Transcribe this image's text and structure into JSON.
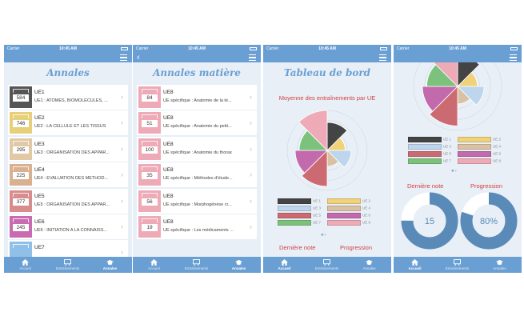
{
  "status": {
    "carrier": "Carrier",
    "time": "10:45 AM"
  },
  "tabbar": [
    {
      "label": "Accueil"
    },
    {
      "label": "Entraînements"
    },
    {
      "label": "Annales"
    }
  ],
  "screen1": {
    "title": "Annales",
    "rows": [
      {
        "code": "UE1",
        "desc": "UE1 : ATOMES, BIOMOLECULES, ...",
        "count": "584",
        "color": "#555555"
      },
      {
        "code": "UE2",
        "desc": "UE2 : LA CELLULE ET LES TISSUS",
        "count": "746",
        "color": "#e8cf7a"
      },
      {
        "code": "UE3",
        "desc": "UE3 : ORGANISATION DES APPAR...",
        "count": "295",
        "color": "#e0c9a4"
      },
      {
        "code": "UE4",
        "desc": "UE4 : EVALUATION DES METHOD...",
        "count": "225",
        "color": "#d9b090"
      },
      {
        "code": "UE5",
        "desc": "UE5 : ORGANISATION DES APPAR...",
        "count": "377",
        "color": "#d98c8c"
      },
      {
        "code": "UE6",
        "desc": "UE6 : INITIATION A LA CONNAISS...",
        "count": "245",
        "color": "#c96bb0"
      },
      {
        "code": "UE7",
        "desc": "",
        "count": "",
        "color": "#90c0e8"
      }
    ]
  },
  "screen2": {
    "title": "Annales matière",
    "rows": [
      {
        "code": "UE8",
        "desc": "UE spécifique : Anatomie de la té...",
        "count": "84"
      },
      {
        "code": "UE8",
        "desc": "UE spécifique : Anatomie du petit...",
        "count": "51"
      },
      {
        "code": "UE8",
        "desc": "UE spécifique : Anatomie du thorax",
        "count": "100"
      },
      {
        "code": "UE8",
        "desc": "UE spécifique : Méthodes d'étude...",
        "count": "35"
      },
      {
        "code": "UE8",
        "desc": "UE spécifique : Morphogénèse cr...",
        "count": "56"
      },
      {
        "code": "UE8",
        "desc": "UE spécifique : Les médicaments ...",
        "count": "19"
      }
    ]
  },
  "screen3": {
    "title": "Tableau de bord",
    "chart_title": "Moyenne des entraînements par UE",
    "last_score_label": "Dernière note",
    "progress_label": "Progression"
  },
  "screen4": {
    "last_score_label": "Dernière note",
    "progress_label": "Progression",
    "last_score_value": "15",
    "progress_value": "80%"
  },
  "chart_data": {
    "type": "polar-area",
    "title": "Moyenne des entraînements par UE",
    "series": [
      {
        "name": "UE 1",
        "value": 14,
        "color": "#444444"
      },
      {
        "name": "UE 2",
        "value": 9,
        "color": "#f0d27a"
      },
      {
        "name": "UE 3",
        "value": 12,
        "color": "#bed5ee"
      },
      {
        "name": "UE 4",
        "value": 8,
        "color": "#d9c2a4"
      },
      {
        "name": "UE 5",
        "value": 18,
        "color": "#cc6a72"
      },
      {
        "name": "UE 6",
        "value": 16,
        "color": "#c36aac"
      },
      {
        "name": "UE 7",
        "value": 14,
        "color": "#7cc27c"
      },
      {
        "name": "UE 8",
        "value": 20,
        "color": "#eeaab6"
      }
    ]
  },
  "colors": {
    "accent": "#6a9fd4",
    "red": "#d24040",
    "ring": "#5a8bb8"
  }
}
